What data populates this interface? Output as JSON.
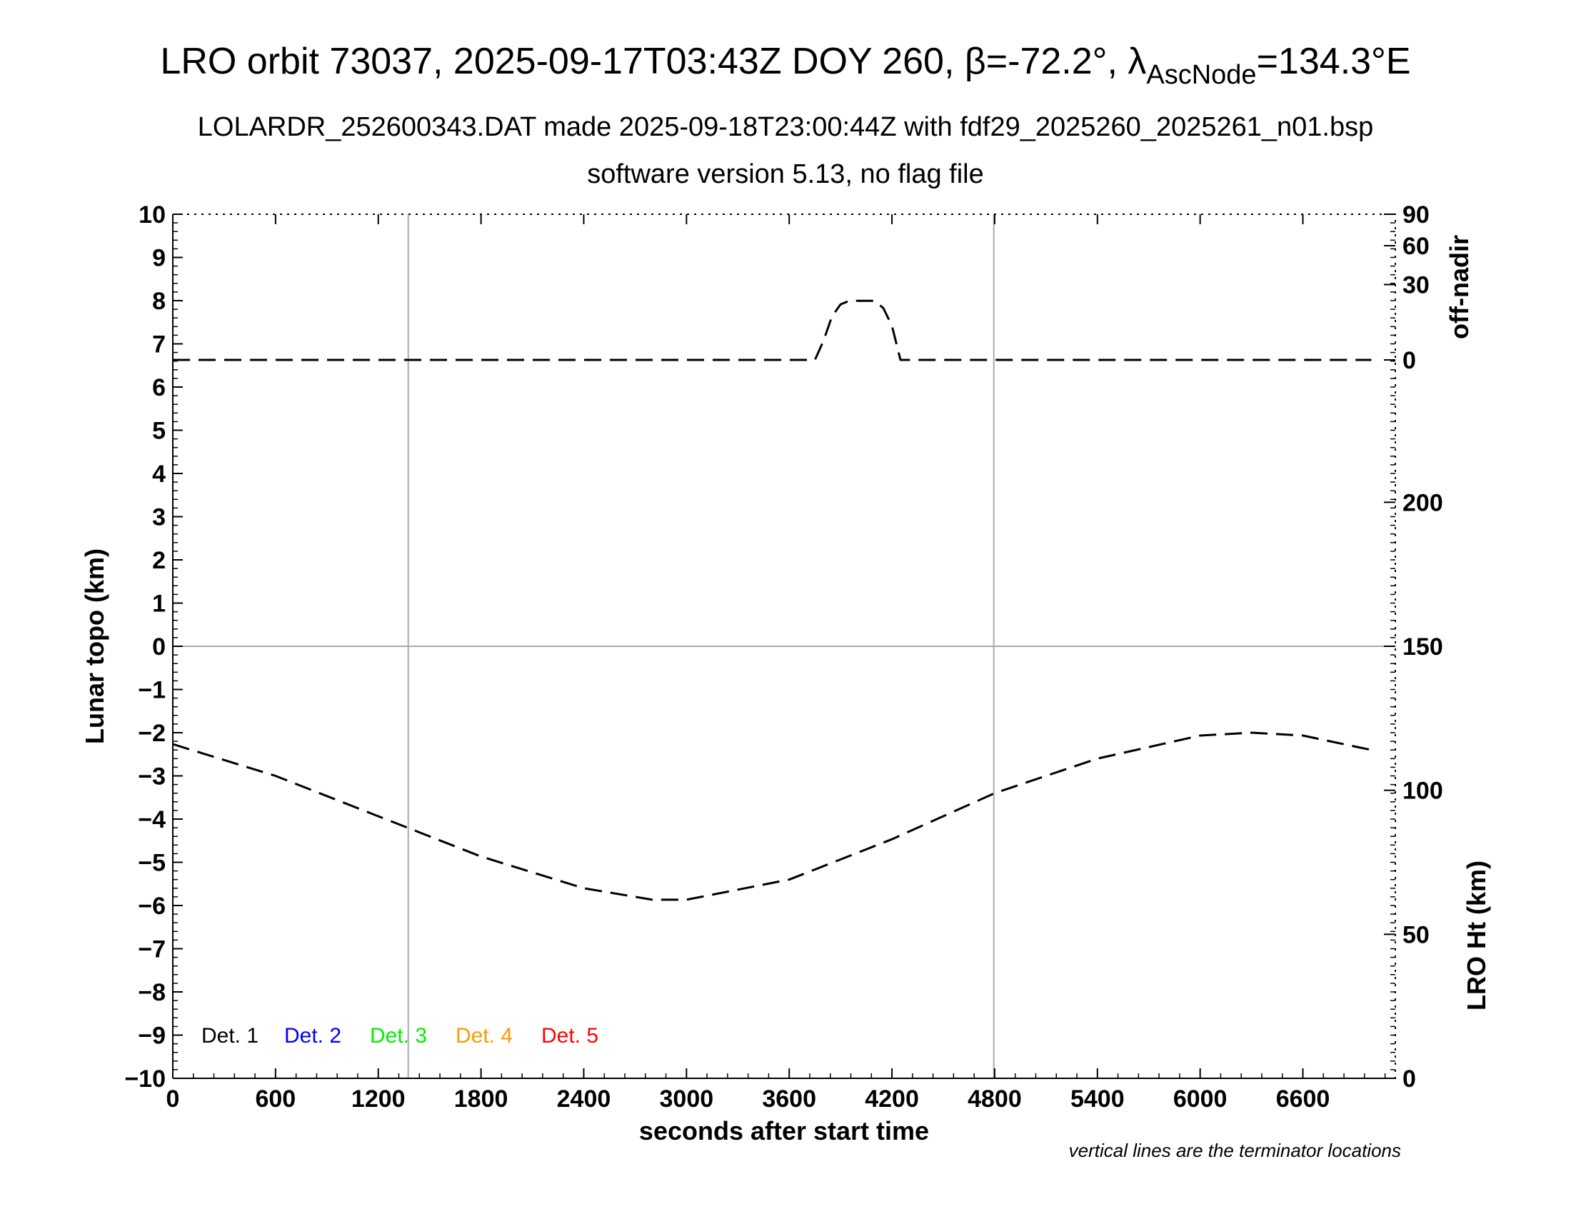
{
  "title": {
    "prefix": "LRO orbit 73037, 2025-09-17T03:43Z DOY 260, ",
    "beta_symbol": "β",
    "beta_value": "=-72.2°, ",
    "lambda_symbol": "λ",
    "lambda_subscript": "AscNode",
    "lambda_value": "=134.3°E"
  },
  "subtitle1": "LOLARDR_252600343.DAT made 2025-09-18T23:00:44Z with fdf29_2025260_2025261_n01.bsp",
  "subtitle2": "software version 5.13, no flag file",
  "note": "vertical lines are the terminator locations",
  "chart_data": {
    "type": "line",
    "xlabel": "seconds after start time",
    "ylabel_left": "Lunar topo (km)",
    "ylabel_right_top": "off-nadir",
    "ylabel_right_bottom": "LRO Ht (km)",
    "xlim": [
      0,
      7140
    ],
    "ylim_left": [
      -10,
      10
    ],
    "x_ticks": [
      0,
      600,
      1200,
      1800,
      2400,
      3000,
      3600,
      4200,
      4800,
      5400,
      6000,
      6600
    ],
    "x_tick_labels": [
      "0",
      "600",
      "1200",
      "1800",
      "2400",
      "3000",
      "3600",
      "4200",
      "4800",
      "5400",
      "6000",
      "6600"
    ],
    "y_ticks_left": [
      10,
      9,
      8,
      7,
      6,
      5,
      4,
      3,
      2,
      1,
      0,
      -1,
      -2,
      -3,
      -4,
      -5,
      -6,
      -7,
      -8,
      -9,
      -10
    ],
    "y_tick_labels_left": [
      "10",
      "9",
      "8",
      "7",
      "6",
      "5",
      "4",
      "3",
      "2",
      "1",
      "0",
      "−1",
      "−2",
      "−3",
      "−4",
      "−5",
      "−6",
      "−7",
      "−8",
      "−9",
      "−10"
    ],
    "off_nadir_axis": {
      "ticks": [
        0,
        30,
        60,
        90
      ],
      "tick_labels": [
        "0",
        "30",
        "60",
        "90"
      ],
      "scale": "compressed"
    },
    "ht_axis": {
      "range": [
        0,
        300
      ],
      "ticks": [
        0,
        50,
        100,
        150,
        200
      ],
      "tick_labels": [
        "0",
        "50",
        "100",
        "150",
        "200"
      ]
    },
    "terminator_lines": [
      1375,
      4795
    ],
    "grid": false,
    "legend_position": "bottom-left",
    "legend": [
      {
        "label": "Det. 1",
        "color": "#000000"
      },
      {
        "label": "Det. 2",
        "color": "#0000ff"
      },
      {
        "label": "Det. 3",
        "color": "#00ee00"
      },
      {
        "label": "Det. 4",
        "color": "#ff9900"
      },
      {
        "label": "Det. 5",
        "color": "#ff0000"
      }
    ],
    "series": [
      {
        "name": "off-nadir",
        "axis": "off-nadir",
        "style": "dashed",
        "color": "#000000",
        "x": [
          0,
          3750,
          3800,
          3850,
          3900,
          3950,
          4000,
          4050,
          4100,
          4150,
          4200,
          4250,
          7000
        ],
        "y": [
          0,
          0,
          3,
          12,
          18,
          20,
          20,
          20,
          20,
          16,
          8,
          0,
          0
        ]
      },
      {
        "name": "LRO Ht",
        "axis": "ht",
        "style": "dashed",
        "color": "#000000",
        "x": [
          0,
          600,
          1200,
          1800,
          2400,
          2800,
          3000,
          3600,
          4200,
          4800,
          5400,
          6000,
          6300,
          6600,
          7000
        ],
        "y": [
          116,
          105,
          91,
          77,
          66,
          62,
          62,
          69,
          83,
          99,
          111,
          119,
          120,
          119,
          114
        ]
      }
    ]
  }
}
